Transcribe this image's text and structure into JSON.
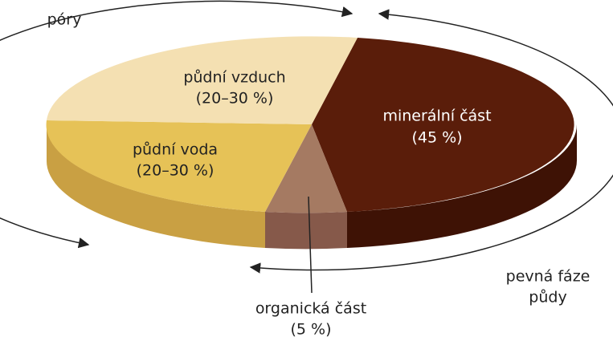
{
  "labels": {
    "pores": "póry",
    "solid_phase": [
      "pevná fáze",
      "půdy"
    ]
  },
  "segments": [
    {
      "name": "půdní vzduch",
      "share": "(20–30 %)"
    },
    {
      "name": "půdní voda",
      "share": "(20–30 %)"
    },
    {
      "name": "minerální část",
      "share": "(45 %)"
    },
    {
      "name": "organická část",
      "share": "(5 %)"
    }
  ]
}
